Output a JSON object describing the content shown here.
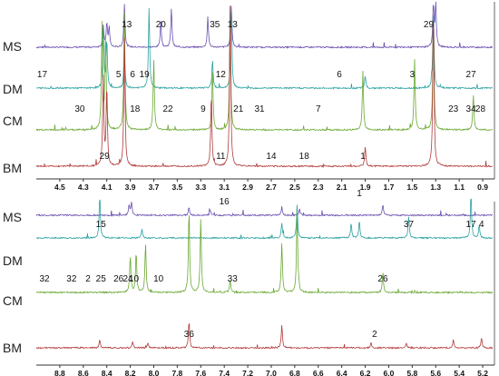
{
  "chart_data": [
    {
      "type": "line",
      "panel": "top",
      "x_unit": "ppm",
      "x_range": [
        4.7,
        0.8
      ],
      "x_reversed": true,
      "ticks": [
        "4.5",
        "4.3",
        "4.1",
        "3.9",
        "3.7",
        "3.5",
        "3.3",
        "3.1",
        "2.9",
        "2.7",
        "2.5",
        "2.3",
        "2.1",
        "1.9",
        "1.7",
        "1.5",
        "1.3",
        "1.1",
        "0.9"
      ],
      "axis_extra_label": "1",
      "series": [
        {
          "name": "MS",
          "color": "#6a4fb0",
          "peaks": [
            [
              4.13,
              0.5
            ],
            [
              4.1,
              0.55
            ],
            [
              4.08,
              0.45
            ],
            [
              3.95,
              1.0
            ],
            [
              3.64,
              0.6
            ],
            [
              3.55,
              0.9
            ],
            [
              3.24,
              0.7
            ],
            [
              3.04,
              1.0
            ],
            [
              1.32,
              1.0
            ],
            [
              1.3,
              1.0
            ]
          ]
        },
        {
          "name": "DM",
          "color": "#2ca0a0",
          "peaks": [
            [
              4.13,
              0.7
            ],
            [
              4.1,
              0.6
            ],
            [
              3.95,
              0.45
            ],
            [
              3.74,
              1.0
            ],
            [
              3.2,
              0.35
            ],
            [
              3.04,
              1.0
            ],
            [
              1.32,
              1.0
            ],
            [
              1.9,
              0.15
            ]
          ]
        },
        {
          "name": "CM",
          "color": "#6aa832",
          "peaks": [
            [
              4.14,
              0.9
            ],
            [
              4.11,
              0.8
            ],
            [
              3.95,
              1.0
            ],
            [
              3.7,
              0.6
            ],
            [
              3.2,
              0.5
            ],
            [
              3.05,
              1.0
            ],
            [
              1.92,
              0.5
            ],
            [
              1.48,
              0.6
            ],
            [
              1.32,
              1.0
            ],
            [
              0.98,
              0.3
            ]
          ]
        },
        {
          "name": "BM",
          "color": "#b23a3a",
          "peaks": [
            [
              4.13,
              0.55
            ],
            [
              4.1,
              0.5
            ],
            [
              3.95,
              0.8
            ],
            [
              3.21,
              0.45
            ],
            [
              3.05,
              1.0
            ],
            [
              1.32,
              1.0
            ],
            [
              1.9,
              0.12
            ]
          ]
        }
      ],
      "annotations": [
        {
          "text": "13",
          "x": 3.93,
          "row": "MS"
        },
        {
          "text": "20",
          "x": 3.64,
          "row": "MS"
        },
        {
          "text": "35",
          "x": 3.18,
          "row": "MS"
        },
        {
          "text": "13",
          "x": 3.03,
          "row": "MS"
        },
        {
          "text": "29",
          "x": 1.36,
          "row": "MS"
        },
        {
          "text": "17",
          "x": 4.65,
          "row": "DM"
        },
        {
          "text": "5",
          "x": 4.0,
          "row": "DM"
        },
        {
          "text": "6",
          "x": 3.88,
          "row": "DM"
        },
        {
          "text": "19",
          "x": 3.78,
          "row": "DM"
        },
        {
          "text": "6",
          "x": 2.12,
          "row": "DM"
        },
        {
          "text": "3",
          "x": 1.5,
          "row": "DM"
        },
        {
          "text": "27",
          "x": 1.0,
          "row": "DM"
        },
        {
          "text": "12",
          "x": 3.13,
          "row": "DM"
        },
        {
          "text": "30",
          "x": 4.33,
          "row": "CM"
        },
        {
          "text": "18",
          "x": 3.86,
          "row": "CM"
        },
        {
          "text": "22",
          "x": 3.58,
          "row": "CM"
        },
        {
          "text": "9",
          "x": 3.28,
          "row": "CM"
        },
        {
          "text": "21",
          "x": 2.98,
          "row": "CM"
        },
        {
          "text": "31",
          "x": 2.8,
          "row": "CM"
        },
        {
          "text": "7",
          "x": 2.3,
          "row": "CM"
        },
        {
          "text": "23",
          "x": 1.15,
          "row": "CM"
        },
        {
          "text": "34",
          "x": 1.0,
          "row": "CM"
        },
        {
          "text": "28",
          "x": 0.92,
          "row": "CM"
        },
        {
          "text": "29",
          "x": 4.12,
          "row": "BM"
        },
        {
          "text": "11",
          "x": 3.13,
          "row": "BM"
        },
        {
          "text": "14",
          "x": 2.7,
          "row": "BM"
        },
        {
          "text": "18",
          "x": 2.42,
          "row": "BM"
        },
        {
          "text": "1",
          "x": 1.92,
          "row": "BM"
        }
      ]
    },
    {
      "type": "line",
      "panel": "bottom",
      "x_unit": "ppm",
      "x_range": [
        9.0,
        5.1
      ],
      "x_reversed": true,
      "ticks": [
        "8.8",
        "8.6",
        "8.4",
        "8.2",
        "8.0",
        "7.8",
        "7.6",
        "7.4",
        "7.2",
        "7.0",
        "6.8",
        "6.6",
        "6.4",
        "6.2",
        "6.0",
        "5.8",
        "5.6",
        "5.4",
        "5.2"
      ],
      "series": [
        {
          "name": "MS",
          "color": "#6a4fb0",
          "peaks": [
            [
              8.21,
              0.55
            ],
            [
              8.19,
              0.7
            ],
            [
              7.7,
              0.45
            ],
            [
              7.52,
              0.3
            ],
            [
              6.91,
              0.45
            ],
            [
              6.76,
              0.35
            ],
            [
              6.05,
              0.55
            ]
          ]
        },
        {
          "name": "DM",
          "color": "#2ca0a0",
          "peaks": [
            [
              8.46,
              1.0
            ],
            [
              8.1,
              0.2
            ],
            [
              6.91,
              0.35
            ],
            [
              6.78,
              0.75
            ],
            [
              6.32,
              0.35
            ],
            [
              6.25,
              0.4
            ],
            [
              5.83,
              0.5
            ],
            [
              5.3,
              1.0
            ],
            [
              5.23,
              0.3
            ]
          ]
        },
        {
          "name": "CM",
          "color": "#6aa832",
          "peaks": [
            [
              8.2,
              0.45
            ],
            [
              8.15,
              0.5
            ],
            [
              8.07,
              0.6
            ],
            [
              7.7,
              1.0
            ],
            [
              7.6,
              0.9
            ],
            [
              7.35,
              0.15
            ],
            [
              6.91,
              0.6
            ],
            [
              6.78,
              1.0
            ],
            [
              6.05,
              0.25
            ]
          ]
        },
        {
          "name": "BM",
          "color": "#b23a3a",
          "peaks": [
            [
              8.46,
              0.2
            ],
            [
              8.18,
              0.15
            ],
            [
              8.05,
              0.12
            ],
            [
              7.7,
              0.65
            ],
            [
              6.91,
              0.55
            ],
            [
              6.15,
              0.12
            ],
            [
              5.85,
              0.12
            ],
            [
              5.45,
              0.2
            ],
            [
              5.21,
              0.25
            ]
          ]
        }
      ],
      "annotations": [
        {
          "text": "16",
          "x": 7.4,
          "row": "MS"
        },
        {
          "text": "15",
          "x": 8.45,
          "row": "DM"
        },
        {
          "text": "37",
          "x": 5.83,
          "row": "DM"
        },
        {
          "text": "17",
          "x": 5.3,
          "row": "DM"
        },
        {
          "text": "4",
          "x": 5.21,
          "row": "DM"
        },
        {
          "text": "24",
          "x": 8.22,
          "row": "CM"
        },
        {
          "text": "10",
          "x": 8.17,
          "row": "CM"
        },
        {
          "text": "10",
          "x": 7.96,
          "row": "CM"
        },
        {
          "text": "25",
          "x": 8.45,
          "row": "CM"
        },
        {
          "text": "32",
          "x": 8.93,
          "row": "CM"
        },
        {
          "text": "32",
          "x": 8.7,
          "row": "CM"
        },
        {
          "text": "2",
          "x": 8.56,
          "row": "CM"
        },
        {
          "text": "26",
          "x": 8.3,
          "row": "CM"
        },
        {
          "text": "33",
          "x": 7.33,
          "row": "CM"
        },
        {
          "text": "26",
          "x": 6.05,
          "row": "CM"
        },
        {
          "text": "36",
          "x": 7.7,
          "row": "BM"
        },
        {
          "text": "2",
          "x": 6.12,
          "row": "BM"
        }
      ]
    }
  ]
}
